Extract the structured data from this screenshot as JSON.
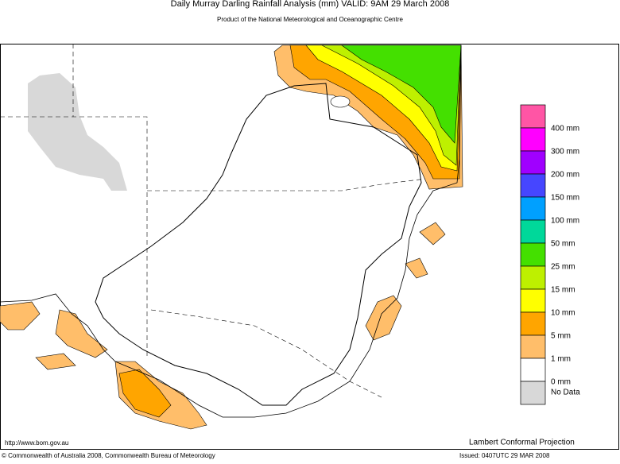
{
  "header": {
    "title": "Daily Murray Darling Rainfall Analysis (mm)  VALID: 9AM 29 March 2008",
    "subtitle": "Product of the National Meteorological and Oceanographic Centre"
  },
  "legend": {
    "colors": [
      "#ff55a5",
      "#ff00ff",
      "#a000ff",
      "#4646ff",
      "#00a0ff",
      "#00d89a",
      "#44e000",
      "#bef000",
      "#ffff00",
      "#ffa500",
      "#ffbe6a",
      "#ffffff",
      "#d8d8d8"
    ],
    "labels": [
      "400 mm",
      "300 mm",
      "200 mm",
      "150 mm",
      "100 mm",
      "50 mm",
      "25 mm",
      "15 mm",
      "10 mm",
      "5 mm",
      "1 mm",
      "0 mm"
    ],
    "no_data": "No Data"
  },
  "footer": {
    "url": "http://www.bom.gov.au",
    "projection": "Lambert Conformal Projection",
    "copyright": "© Commonwealth of Australia 2008, Commonwealth Bureau of Meteorology",
    "issued": "Issued: 0407UTC 29 MAR 2008"
  }
}
